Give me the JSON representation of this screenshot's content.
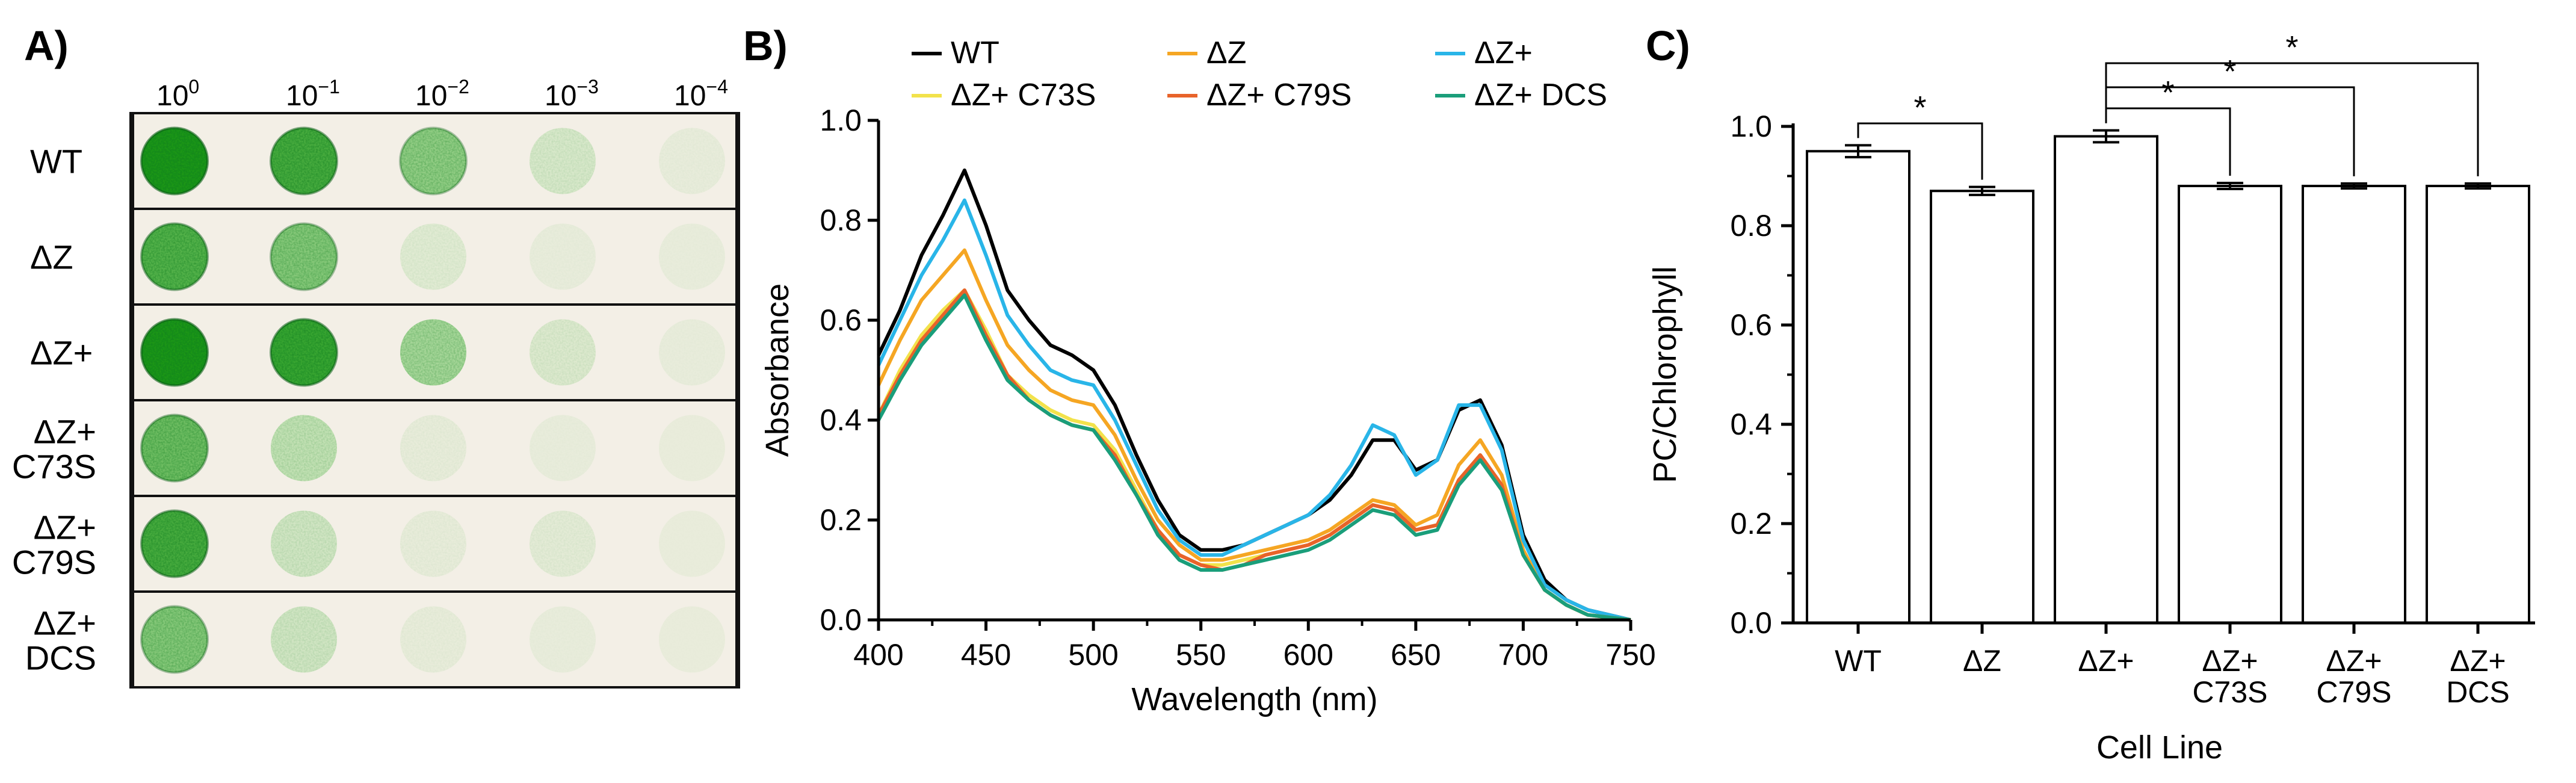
{
  "panels": {
    "a_label": "A)",
    "b_label": "B)",
    "c_label": "C)"
  },
  "spot_assay": {
    "dilutions": [
      {
        "base": "10",
        "exp": "0"
      },
      {
        "base": "10",
        "exp": "−1"
      },
      {
        "base": "10",
        "exp": "−2"
      },
      {
        "base": "10",
        "exp": "−3"
      },
      {
        "base": "10",
        "exp": "−4"
      }
    ],
    "rows": [
      {
        "label_lines": [
          "WT"
        ],
        "intensities": [
          1.0,
          0.85,
          0.55,
          0.18,
          0.05
        ]
      },
      {
        "label_lines": [
          "ΔZ"
        ],
        "intensities": [
          0.8,
          0.6,
          0.12,
          0.04,
          0.02
        ]
      },
      {
        "label_lines": [
          "ΔZ+"
        ],
        "intensities": [
          1.0,
          0.9,
          0.45,
          0.15,
          0.03
        ]
      },
      {
        "label_lines": [
          "ΔZ+",
          "C73S"
        ],
        "intensities": [
          0.7,
          0.3,
          0.08,
          0.03,
          0.01
        ]
      },
      {
        "label_lines": [
          "ΔZ+",
          "C79S"
        ],
        "intensities": [
          0.85,
          0.22,
          0.08,
          0.1,
          0.01
        ]
      },
      {
        "label_lines": [
          "ΔZ+",
          "DCS"
        ],
        "intensities": [
          0.6,
          0.22,
          0.07,
          0.03,
          0.01
        ]
      }
    ]
  },
  "chart_data": [
    {
      "type": "line",
      "title": "",
      "xlabel": "Wavelength (nm)",
      "ylabel": "Absorbance",
      "xlim": [
        400,
        750
      ],
      "ylim": [
        0,
        1.0
      ],
      "xticks": [
        400,
        450,
        500,
        550,
        600,
        650,
        700,
        750
      ],
      "yticks": [
        "0.0",
        "0.2",
        "0.4",
        "0.6",
        "0.8",
        "1.0"
      ],
      "legend_position": "top",
      "x": [
        400,
        410,
        420,
        430,
        440,
        450,
        460,
        470,
        480,
        490,
        500,
        510,
        520,
        530,
        540,
        550,
        560,
        570,
        580,
        590,
        600,
        610,
        620,
        630,
        640,
        650,
        660,
        670,
        680,
        690,
        700,
        710,
        720,
        730,
        740,
        750
      ],
      "series": [
        {
          "name": "WT",
          "color": "#000000",
          "values": [
            0.53,
            0.62,
            0.73,
            0.81,
            0.9,
            0.79,
            0.66,
            0.6,
            0.55,
            0.53,
            0.5,
            0.43,
            0.33,
            0.24,
            0.17,
            0.14,
            0.14,
            0.15,
            0.17,
            0.19,
            0.21,
            0.24,
            0.29,
            0.36,
            0.36,
            0.3,
            0.32,
            0.42,
            0.44,
            0.35,
            0.17,
            0.08,
            0.04,
            0.02,
            0.01,
            0.0
          ]
        },
        {
          "name": "ΔZ",
          "color": "#F5A623",
          "values": [
            0.47,
            0.56,
            0.64,
            0.69,
            0.74,
            0.64,
            0.55,
            0.5,
            0.46,
            0.44,
            0.43,
            0.37,
            0.28,
            0.2,
            0.15,
            0.12,
            0.12,
            0.13,
            0.14,
            0.15,
            0.16,
            0.18,
            0.21,
            0.24,
            0.23,
            0.19,
            0.21,
            0.31,
            0.36,
            0.29,
            0.14,
            0.06,
            0.03,
            0.01,
            0.005,
            0.0
          ]
        },
        {
          "name": "ΔZ+",
          "color": "#29B5E8",
          "values": [
            0.51,
            0.6,
            0.69,
            0.76,
            0.84,
            0.73,
            0.61,
            0.55,
            0.5,
            0.48,
            0.47,
            0.4,
            0.31,
            0.22,
            0.16,
            0.13,
            0.13,
            0.15,
            0.17,
            0.19,
            0.21,
            0.25,
            0.31,
            0.39,
            0.37,
            0.29,
            0.32,
            0.43,
            0.43,
            0.34,
            0.16,
            0.07,
            0.04,
            0.02,
            0.01,
            0.0
          ]
        },
        {
          "name": "ΔZ+ C73S",
          "color": "#F2E24B",
          "values": [
            0.41,
            0.5,
            0.57,
            0.62,
            0.66,
            0.58,
            0.49,
            0.45,
            0.42,
            0.4,
            0.39,
            0.34,
            0.26,
            0.18,
            0.13,
            0.11,
            0.11,
            0.12,
            0.13,
            0.14,
            0.15,
            0.17,
            0.2,
            0.23,
            0.22,
            0.18,
            0.19,
            0.28,
            0.33,
            0.27,
            0.13,
            0.06,
            0.03,
            0.01,
            0.005,
            0.0
          ]
        },
        {
          "name": "ΔZ+ C79S",
          "color": "#E8632A",
          "values": [
            0.41,
            0.49,
            0.56,
            0.61,
            0.66,
            0.57,
            0.49,
            0.44,
            0.41,
            0.39,
            0.38,
            0.33,
            0.25,
            0.18,
            0.13,
            0.11,
            0.1,
            0.11,
            0.13,
            0.14,
            0.15,
            0.17,
            0.2,
            0.23,
            0.22,
            0.18,
            0.19,
            0.28,
            0.33,
            0.27,
            0.13,
            0.06,
            0.03,
            0.01,
            0.005,
            0.0
          ]
        },
        {
          "name": "ΔZ+ DCS",
          "color": "#1A9E7A",
          "values": [
            0.4,
            0.48,
            0.55,
            0.6,
            0.65,
            0.56,
            0.48,
            0.44,
            0.41,
            0.39,
            0.38,
            0.32,
            0.25,
            0.17,
            0.12,
            0.1,
            0.1,
            0.11,
            0.12,
            0.13,
            0.14,
            0.16,
            0.19,
            0.22,
            0.21,
            0.17,
            0.18,
            0.27,
            0.32,
            0.26,
            0.13,
            0.06,
            0.03,
            0.01,
            0.005,
            0.0
          ]
        }
      ]
    },
    {
      "type": "bar",
      "title": "",
      "xlabel": "Cell Line",
      "ylabel": "PC/Chlorophyll",
      "ylim": [
        0,
        1.0
      ],
      "yticks": [
        "0.0",
        "0.2",
        "0.4",
        "0.6",
        "0.8",
        "1.0"
      ],
      "categories": [
        {
          "lines": [
            "WT"
          ]
        },
        {
          "lines": [
            "ΔZ"
          ]
        },
        {
          "lines": [
            "ΔZ+"
          ]
        },
        {
          "lines": [
            "ΔZ+",
            "C73S"
          ]
        },
        {
          "lines": [
            "ΔZ+",
            "C79S"
          ]
        },
        {
          "lines": [
            "ΔZ+",
            "DCS"
          ]
        }
      ],
      "values": [
        0.95,
        0.87,
        0.98,
        0.88,
        0.88,
        0.88
      ],
      "errors": [
        0.012,
        0.008,
        0.012,
        0.006,
        0.005,
        0.005
      ],
      "significance": [
        {
          "from": 0,
          "to": 1,
          "label": "*"
        },
        {
          "from": 2,
          "to": 3,
          "label": "*"
        },
        {
          "from": 2,
          "to": 4,
          "label": "*"
        },
        {
          "from": 2,
          "to": 5,
          "label": "*"
        }
      ]
    }
  ]
}
